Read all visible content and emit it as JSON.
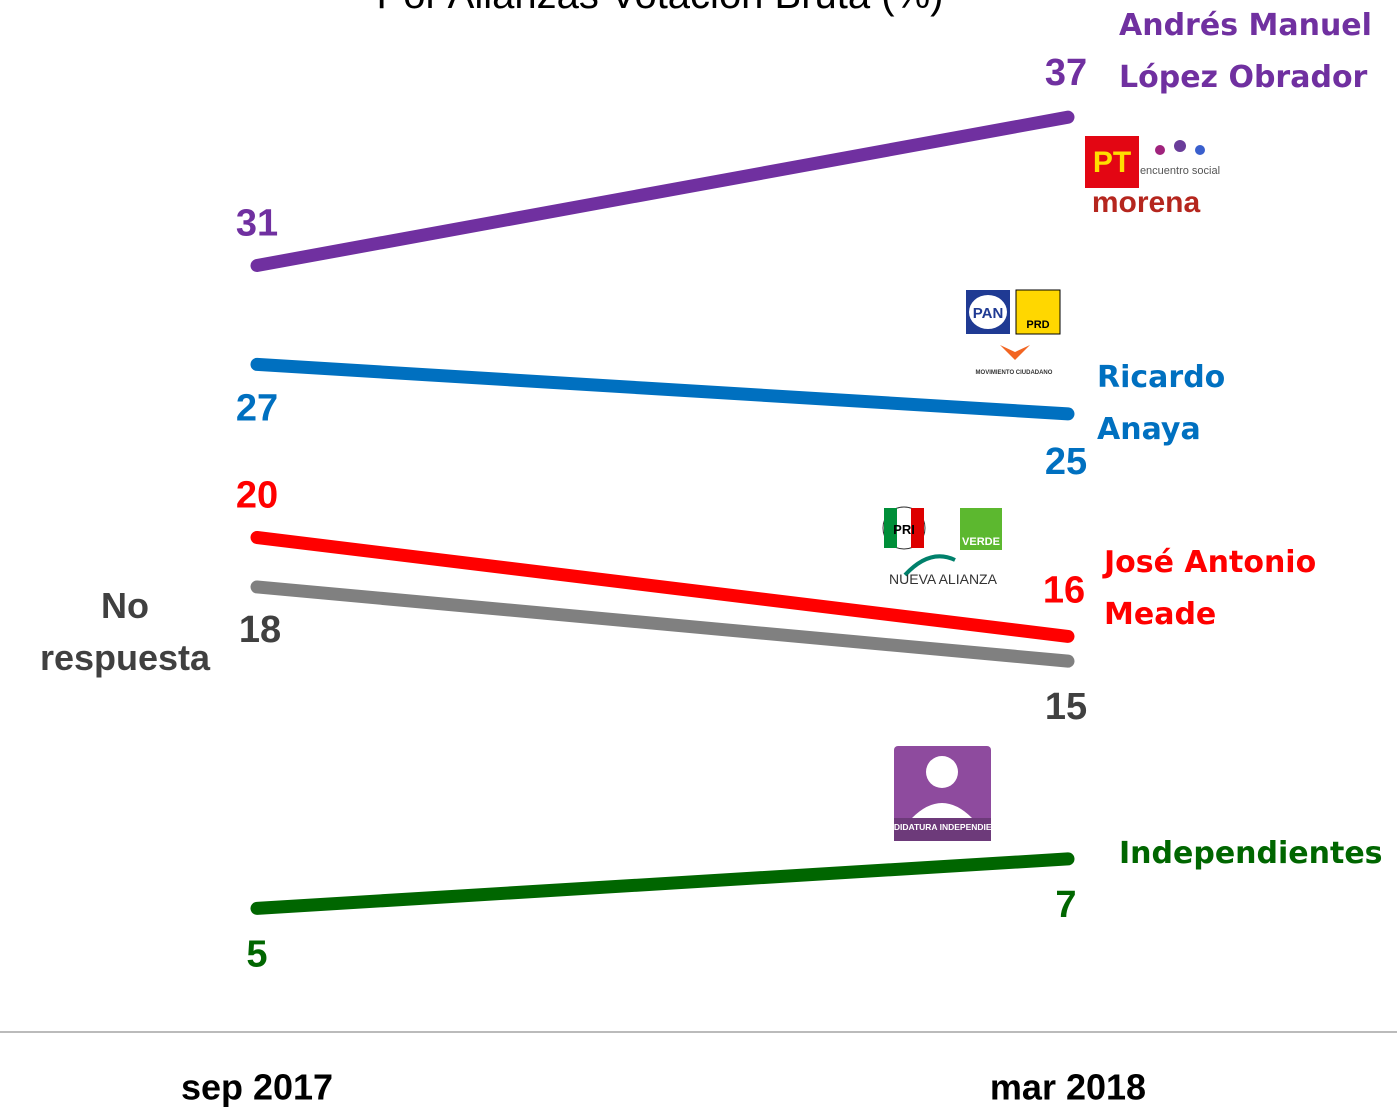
{
  "chart_data": {
    "type": "slope",
    "title": "Por Alianzas Votación Bruta (%)",
    "categories": [
      "sep 2017",
      "mar 2018"
    ],
    "ylim": [
      0,
      40
    ],
    "series": [
      {
        "name": "Andrés Manuel López Obrador",
        "color": "#7030a0",
        "values": [
          31,
          37
        ]
      },
      {
        "name": "Ricardo Anaya",
        "color": "#0070c0",
        "values": [
          27,
          25
        ]
      },
      {
        "name": "José Antonio Meade",
        "color": "#ff0000",
        "values": [
          20,
          16
        ]
      },
      {
        "name": "No respuesta",
        "color": "#808080",
        "label_color": "#404040",
        "values": [
          18,
          15
        ]
      },
      {
        "name": "Independientes",
        "color": "#006600",
        "values": [
          5,
          7
        ]
      }
    ]
  },
  "logos": {
    "pt": "PT",
    "morena": "morena",
    "es": "encuentro social",
    "pan": "PAN",
    "prd": "PRD",
    "mc": "MOVIMIENTO CIUDADANO",
    "pri": "PRI",
    "verde": "VERDE",
    "na": "NUEVA ALIANZA",
    "ci": "CANDIDATURA INDEPENDIENTE"
  }
}
